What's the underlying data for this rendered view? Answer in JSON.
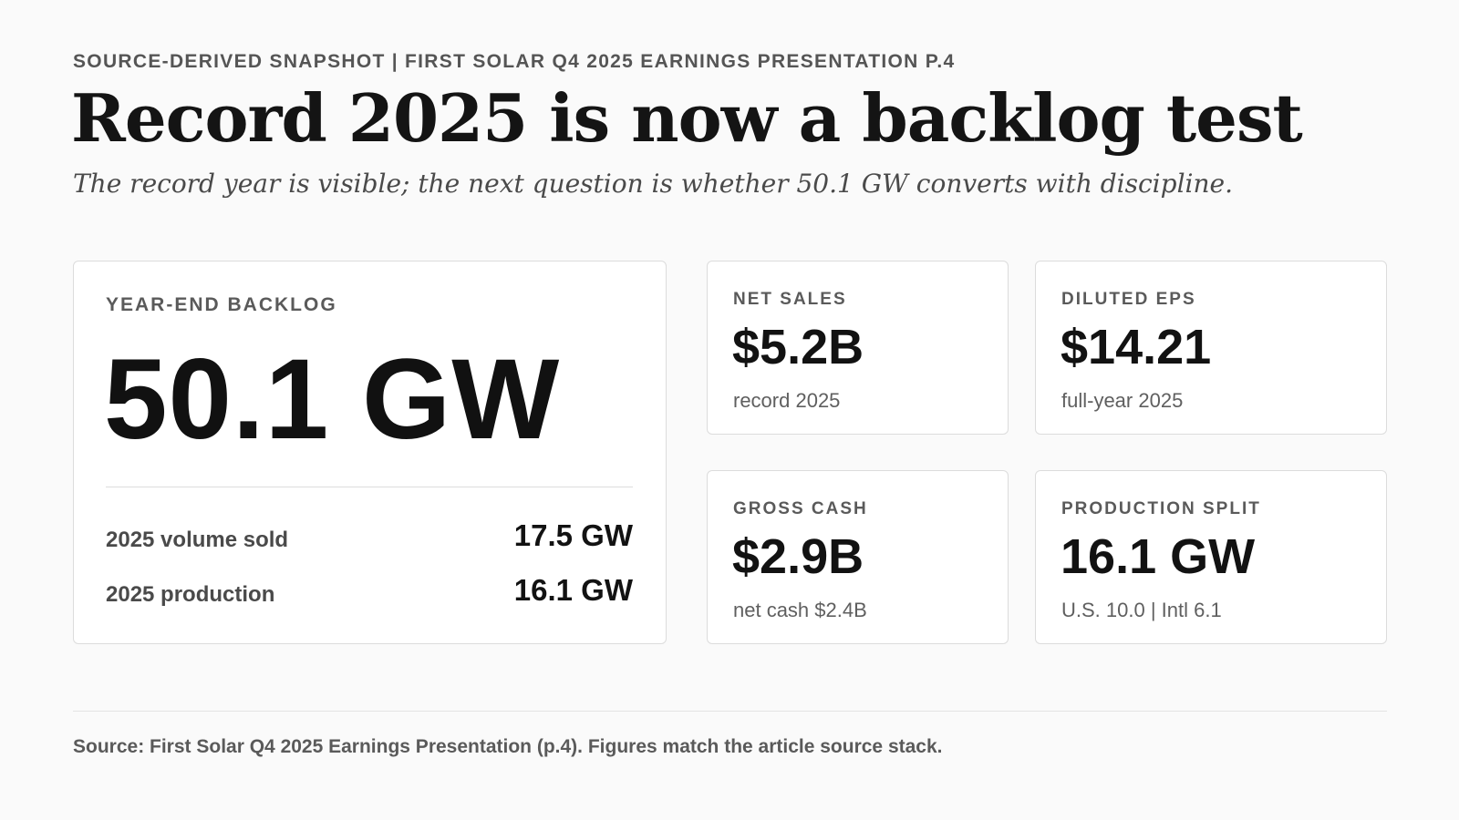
{
  "header": {
    "eyebrow": "SOURCE-DERIVED SNAPSHOT | FIRST SOLAR Q4 2025 EARNINGS PRESENTATION P.4",
    "title": "Record 2025 is now a backlog test",
    "subtitle": "The record year is visible; the next question is whether 50.1 GW converts with discipline."
  },
  "main_card": {
    "label": "YEAR-END BACKLOG",
    "value": "50.1 GW",
    "rows": [
      {
        "label": "2025 volume sold",
        "value": "17.5 GW"
      },
      {
        "label": "2025 production",
        "value": "16.1 GW"
      }
    ]
  },
  "metrics": [
    {
      "label": "NET SALES",
      "value": "$5.2B",
      "note": "record 2025"
    },
    {
      "label": "DILUTED EPS",
      "value": "$14.21",
      "note": "full-year 2025"
    },
    {
      "label": "GROSS CASH",
      "value": "$2.9B",
      "note": "net cash $2.4B"
    },
    {
      "label": "PRODUCTION SPLIT",
      "value": "16.1 GW",
      "note": "U.S. 10.0 | Intl 6.1"
    }
  ],
  "footer": {
    "source": "Source: First Solar Q4 2025 Earnings Presentation (p.4). Figures match the article source stack."
  }
}
